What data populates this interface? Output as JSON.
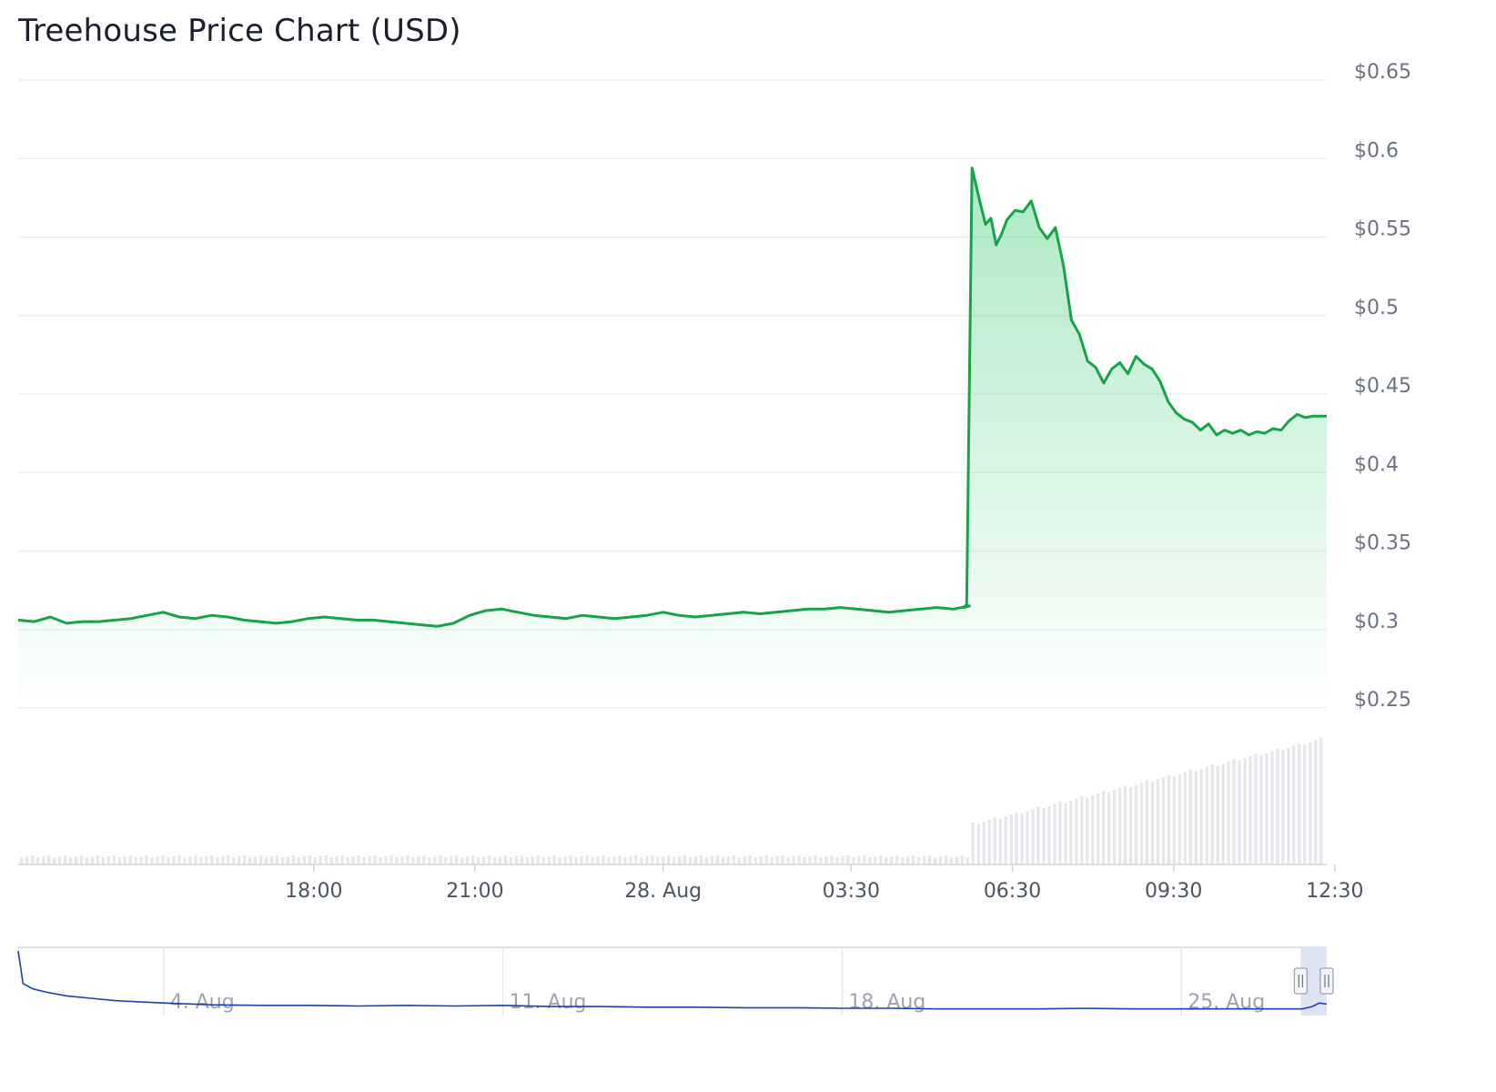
{
  "page": {
    "title": "Treehouse Price Chart (USD)"
  },
  "colors": {
    "price_line": "#16a34a",
    "price_fill": "#22c55e",
    "volume": "#e5e7eb",
    "navigator_line": "#1e40af",
    "navigator_mask": "#dbe2f2",
    "grid": "#eceff3"
  },
  "chart_data": {
    "type": "line",
    "title": "Treehouse Price Chart (USD)",
    "price": {
      "ylim": [
        0.25,
        0.65
      ],
      "y_ticks": [
        "$0.65",
        "$0.6",
        "$0.55",
        "$0.5",
        "$0.45",
        "$0.4",
        "$0.35",
        "$0.3",
        "$0.25"
      ],
      "y_tick_values": [
        0.65,
        0.6,
        0.55,
        0.5,
        0.45,
        0.4,
        0.35,
        0.3,
        0.25
      ],
      "x_ticks": [
        "18:00",
        "21:00",
        "28. Aug",
        "03:30",
        "06:30",
        "09:30",
        "12:30"
      ],
      "x_tick_hours": [
        17.5,
        20.5,
        24.0,
        27.5,
        30.5,
        33.5,
        36.5
      ],
      "x_range_hours": [
        12.0,
        36.35
      ],
      "series": [
        {
          "x": [
            12.0,
            12.3,
            12.6,
            12.9,
            13.2,
            13.5,
            13.8,
            14.1,
            14.4,
            14.7,
            15.0,
            15.3,
            15.6,
            15.9,
            16.2,
            16.5,
            16.8,
            17.1,
            17.4,
            17.7,
            18.0,
            18.3,
            18.6,
            18.9,
            19.2,
            19.5,
            19.8,
            20.1,
            20.4,
            20.7,
            21.0,
            21.3,
            21.6,
            21.9,
            22.2,
            22.5,
            22.8,
            23.1,
            23.4,
            23.7,
            24.0,
            24.3,
            24.6,
            24.9,
            25.2,
            25.5,
            25.8,
            26.1,
            26.4,
            26.7,
            27.0,
            27.3,
            27.6,
            27.9,
            28.2,
            28.5,
            28.8,
            29.1,
            29.4,
            29.7,
            29.6,
            29.65,
            29.75,
            29.9,
            30.0,
            30.1,
            30.2,
            30.3,
            30.4,
            30.55,
            30.7,
            30.85,
            31.0,
            31.15,
            31.3,
            31.45,
            31.6,
            31.75,
            31.9,
            32.05,
            32.2,
            32.35,
            32.5,
            32.65,
            32.8,
            32.95,
            33.1,
            33.25,
            33.4,
            33.55,
            33.7,
            33.85,
            34.0,
            34.15,
            34.3,
            34.45,
            34.6,
            34.75,
            34.9,
            35.05,
            35.2,
            35.35,
            35.5,
            35.65,
            35.8,
            35.95,
            36.1,
            36.25,
            36.35
          ],
          "y": [
            0.306,
            0.305,
            0.308,
            0.304,
            0.305,
            0.305,
            0.306,
            0.307,
            0.309,
            0.311,
            0.308,
            0.307,
            0.309,
            0.308,
            0.306,
            0.305,
            0.304,
            0.305,
            0.307,
            0.308,
            0.307,
            0.306,
            0.306,
            0.305,
            0.304,
            0.303,
            0.302,
            0.304,
            0.309,
            0.312,
            0.313,
            0.311,
            0.309,
            0.308,
            0.307,
            0.309,
            0.308,
            0.307,
            0.308,
            0.309,
            0.311,
            0.309,
            0.308,
            0.309,
            0.31,
            0.311,
            0.31,
            0.311,
            0.312,
            0.313,
            0.313,
            0.314,
            0.313,
            0.312,
            0.311,
            0.312,
            0.313,
            0.314,
            0.313,
            0.315,
            0.314,
            0.316,
            0.594,
            0.572,
            0.558,
            0.562,
            0.545,
            0.552,
            0.561,
            0.567,
            0.566,
            0.573,
            0.556,
            0.549,
            0.556,
            0.532,
            0.497,
            0.488,
            0.471,
            0.467,
            0.457,
            0.466,
            0.47,
            0.463,
            0.474,
            0.469,
            0.466,
            0.458,
            0.445,
            0.438,
            0.434,
            0.432,
            0.427,
            0.431,
            0.424,
            0.427,
            0.425,
            0.427,
            0.424,
            0.426,
            0.425,
            0.428,
            0.427,
            0.433,
            0.437,
            0.435,
            0.436,
            0.436,
            0.436
          ],
          "name": ""
        }
      ]
    },
    "navigator": {
      "labels": [
        "4. Aug",
        "11. Aug",
        "18. Aug",
        "25. Aug"
      ],
      "label_days": [
        4,
        11,
        18,
        25
      ],
      "day_range": [
        1,
        28
      ],
      "selected_day_range": [
        27.5,
        28
      ],
      "series": [
        {
          "x": [
            1.0,
            1.1,
            1.3,
            1.6,
            2.0,
            2.5,
            3.0,
            3.5,
            4.0,
            5.0,
            6.0,
            7.0,
            8.0,
            9.0,
            10.0,
            11.0,
            12.0,
            13.0,
            14.0,
            15.0,
            16.0,
            17.0,
            18.0,
            19.0,
            20.0,
            21.0,
            22.0,
            23.0,
            24.0,
            25.0,
            26.0,
            27.0,
            27.5,
            27.7,
            27.85,
            28.0
          ],
          "y": [
            1.0,
            0.45,
            0.36,
            0.3,
            0.24,
            0.2,
            0.16,
            0.14,
            0.12,
            0.09,
            0.08,
            0.08,
            0.07,
            0.08,
            0.07,
            0.08,
            0.06,
            0.06,
            0.05,
            0.05,
            0.04,
            0.04,
            0.03,
            0.03,
            0.02,
            0.02,
            0.02,
            0.03,
            0.02,
            0.02,
            0.02,
            0.02,
            0.02,
            0.06,
            0.12,
            0.1
          ],
          "name": ""
        }
      ]
    }
  }
}
